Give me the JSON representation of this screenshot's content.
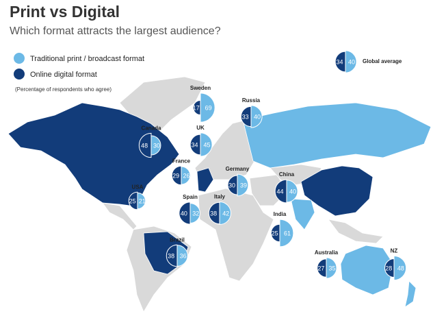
{
  "title": "Print vs Digital",
  "subtitle": "Which format attracts the largest audience?",
  "legend": {
    "print": "Traditional print / broadcast format",
    "digital": "Online digital format",
    "note": "(Percentage of respondents who agree)"
  },
  "colors": {
    "print": "#6cb9e6",
    "digital": "#123c7a"
  },
  "global_average": {
    "label": "Global average",
    "digital": 34,
    "print": 40
  },
  "countries": [
    {
      "name": "Sweden",
      "digital": 17,
      "print": 69
    },
    {
      "name": "Russia",
      "digital": 33,
      "print": 40
    },
    {
      "name": "Canada",
      "digital": 48,
      "print": 30
    },
    {
      "name": "UK",
      "digital": 34,
      "print": 45
    },
    {
      "name": "France",
      "digital": 29,
      "print": 26
    },
    {
      "name": "Germany",
      "digital": 30,
      "print": 39
    },
    {
      "name": "China",
      "digital": 44,
      "print": 40
    },
    {
      "name": "USA",
      "digital": 25,
      "print": 21
    },
    {
      "name": "Spain",
      "digital": 40,
      "print": 32
    },
    {
      "name": "Italy",
      "digital": 38,
      "print": 42
    },
    {
      "name": "India",
      "digital": 25,
      "print": 61
    },
    {
      "name": "Brazil",
      "digital": 38,
      "print": 36
    },
    {
      "name": "Australia",
      "digital": 27,
      "print": 35
    },
    {
      "name": "NZ",
      "digital": 28,
      "print": 48
    }
  ]
}
